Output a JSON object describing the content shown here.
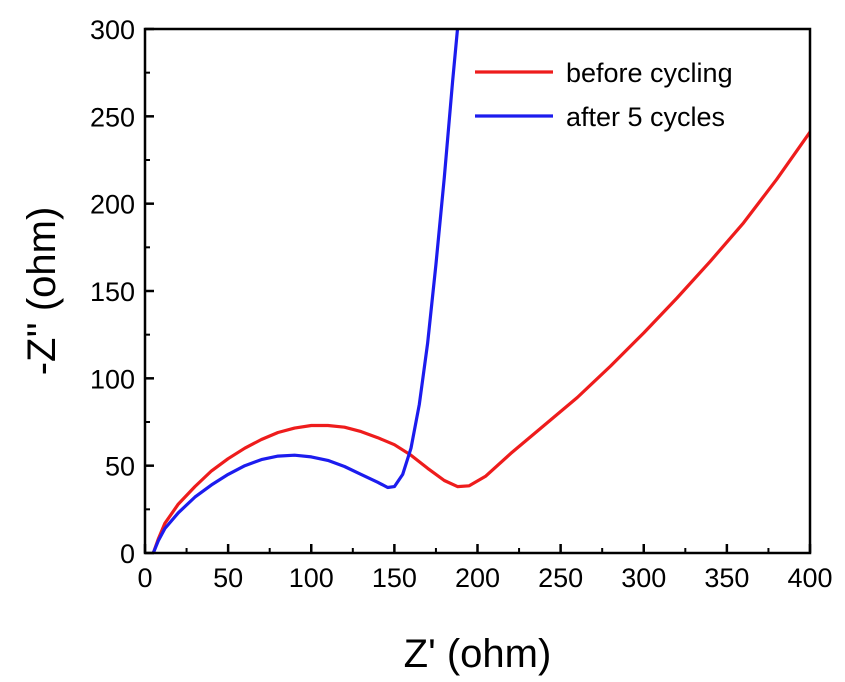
{
  "chart_data": {
    "type": "line",
    "title": "",
    "xlabel": "Z' (ohm)",
    "ylabel": "-Z'' (ohm)",
    "xlim": [
      0,
      400
    ],
    "ylim": [
      0,
      300
    ],
    "xticks": [
      0,
      50,
      100,
      150,
      200,
      250,
      300,
      350,
      400
    ],
    "yticks": [
      0,
      50,
      100,
      150,
      200,
      250,
      300
    ],
    "grid": false,
    "legend": "top-right",
    "series": [
      {
        "name": "before cycling",
        "color": "#ee1c1c",
        "points": [
          [
            5,
            0
          ],
          [
            8,
            8
          ],
          [
            12,
            17
          ],
          [
            20,
            28
          ],
          [
            30,
            38
          ],
          [
            40,
            47
          ],
          [
            50,
            54
          ],
          [
            60,
            60
          ],
          [
            70,
            65
          ],
          [
            80,
            69
          ],
          [
            90,
            71.5
          ],
          [
            100,
            73
          ],
          [
            110,
            73
          ],
          [
            120,
            72
          ],
          [
            130,
            69.5
          ],
          [
            140,
            66
          ],
          [
            150,
            62
          ],
          [
            160,
            56
          ],
          [
            170,
            48.5
          ],
          [
            180,
            41.5
          ],
          [
            188,
            38
          ],
          [
            195,
            38.5
          ],
          [
            205,
            44
          ],
          [
            220,
            57
          ],
          [
            240,
            73
          ],
          [
            260,
            89
          ],
          [
            280,
            107
          ],
          [
            300,
            126
          ],
          [
            320,
            146
          ],
          [
            340,
            167
          ],
          [
            360,
            189
          ],
          [
            380,
            214
          ],
          [
            400,
            241
          ]
        ]
      },
      {
        "name": "after 5 cycles",
        "color": "#1c1cee",
        "points": [
          [
            5,
            0
          ],
          [
            8,
            7
          ],
          [
            12,
            14
          ],
          [
            20,
            23
          ],
          [
            30,
            32
          ],
          [
            40,
            39
          ],
          [
            50,
            45
          ],
          [
            60,
            50
          ],
          [
            70,
            53.5
          ],
          [
            80,
            55.5
          ],
          [
            90,
            56
          ],
          [
            100,
            55
          ],
          [
            110,
            53
          ],
          [
            120,
            49.5
          ],
          [
            130,
            45
          ],
          [
            140,
            40.5
          ],
          [
            146,
            37.5
          ],
          [
            150,
            38
          ],
          [
            155,
            45
          ],
          [
            160,
            60
          ],
          [
            165,
            85
          ],
          [
            170,
            120
          ],
          [
            175,
            165
          ],
          [
            180,
            215
          ],
          [
            185,
            270
          ],
          [
            188,
            300
          ]
        ]
      }
    ]
  }
}
